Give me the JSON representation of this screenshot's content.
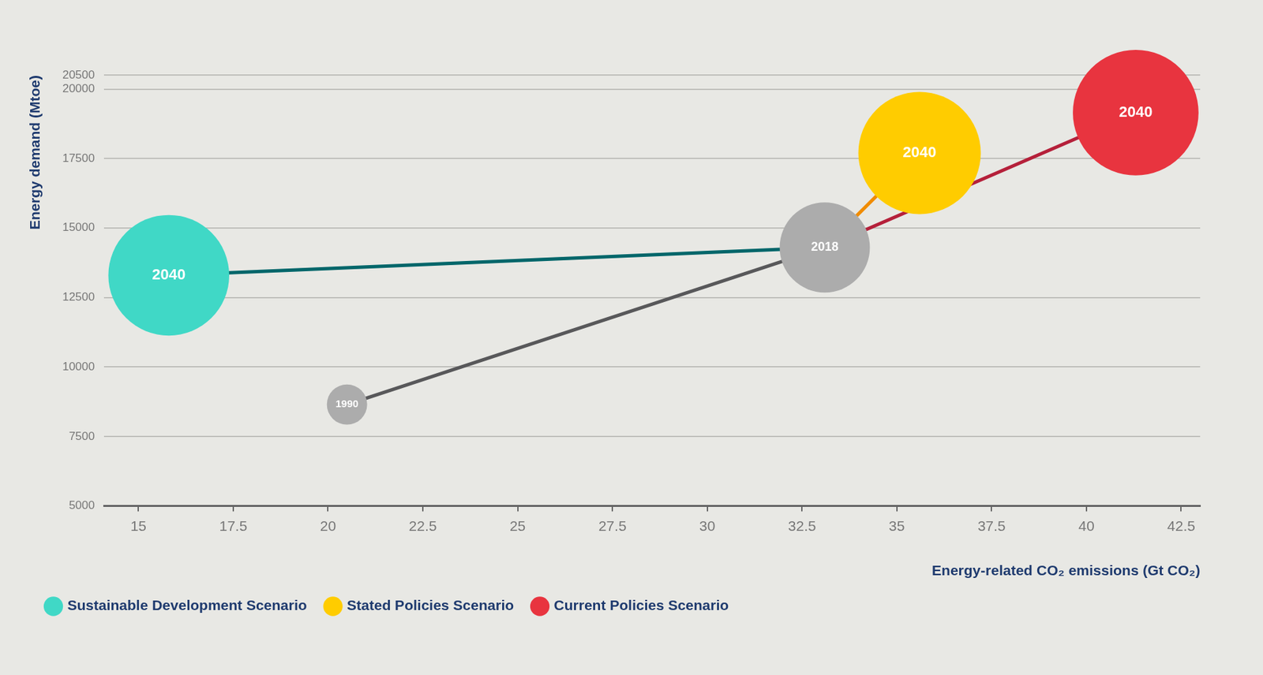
{
  "chart_data": {
    "type": "bubble",
    "x_label": "Energy-related CO₂ emissions (Gt CO₂)",
    "y_label": "Energy demand (Mtoe)",
    "xlim": [
      14.1,
      43
    ],
    "xticks": [
      15,
      17.5,
      20,
      22.5,
      25,
      27.5,
      30,
      32.5,
      35,
      37.5,
      40,
      42.5
    ],
    "ylim": [
      5000,
      20500
    ],
    "yticks": [
      5000,
      7500,
      10000,
      12500,
      15000,
      17500,
      20000,
      20500
    ],
    "grid": "y",
    "legend": "bottom-left",
    "series": [
      {
        "color": "#acacac",
        "x": [
          20.5,
          33.1
        ],
        "values": [
          8650,
          14300
        ],
        "sizes": [
          25,
          56
        ],
        "point_labels": [
          "1990",
          "2018"
        ]
      },
      {
        "name": "Sustainable Development Scenario",
        "color": "#40d8c6",
        "x": [
          33.1,
          15.8
        ],
        "values": [
          14300,
          13300
        ],
        "sizes": [
          null,
          75
        ],
        "point_labels": [
          null,
          "2040"
        ]
      },
      {
        "name": "Stated Policies Scenario",
        "color": "#ffcc00",
        "x": [
          33.1,
          35.6
        ],
        "values": [
          14300,
          17700
        ],
        "sizes": [
          null,
          76
        ],
        "point_labels": [
          null,
          "2040"
        ]
      },
      {
        "name": "Current Policies Scenario",
        "color": "#e8343f",
        "x": [
          33.1,
          41.3
        ],
        "values": [
          14300,
          19150
        ],
        "sizes": [
          null,
          78
        ],
        "point_labels": [
          null,
          "2040"
        ]
      }
    ]
  }
}
